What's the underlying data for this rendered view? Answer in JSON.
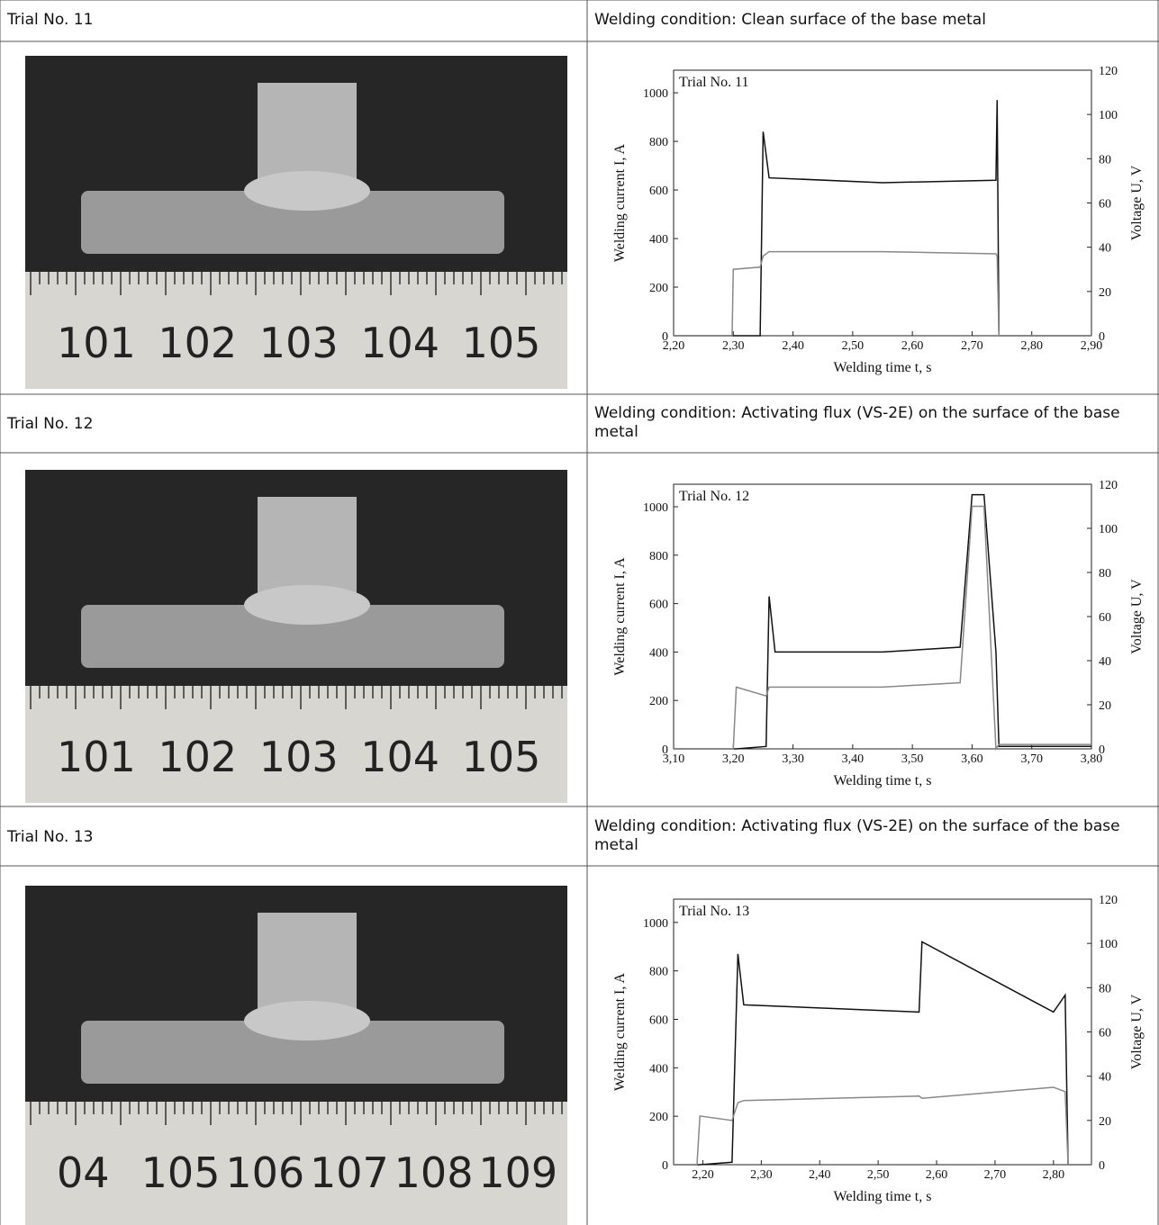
{
  "table": {
    "rows": [
      {
        "trial": "Trial No. 11",
        "condition": "Welding condition: Clean surface of the base metal"
      },
      {
        "trial": "Trial No. 12",
        "condition": "Welding condition: Activating flux (VS-2E) on the surface of the base metal"
      },
      {
        "trial": "Trial No. 13",
        "condition": "Welding condition: Activating flux (VS-2E) on the surface of the base metal"
      }
    ]
  },
  "photos": [
    {
      "ruler_labels": [
        "101",
        "102",
        "103",
        "104",
        "105"
      ]
    },
    {
      "ruler_labels": [
        "101",
        "102",
        "103",
        "104",
        "105"
      ]
    },
    {
      "ruler_labels": [
        "04",
        "105",
        "106",
        "107",
        "108",
        "109"
      ]
    }
  ],
  "chart_data": [
    {
      "type": "line",
      "title": "Trial No. 11",
      "xlabel": "Welding  time t, s",
      "ylabel": "Welding current I, A",
      "y2label": "Voltage U, V",
      "xlim": [
        2.2,
        2.9
      ],
      "xticks": [
        {
          "value": 2.2,
          "label": "2,20"
        },
        {
          "value": 2.3,
          "label": "2,30"
        },
        {
          "value": 2.4,
          "label": "2,40"
        },
        {
          "value": 2.5,
          "label": "2,50"
        },
        {
          "value": 2.6,
          "label": "2,60"
        },
        {
          "value": 2.7,
          "label": "2,70"
        },
        {
          "value": 2.8,
          "label": "2,80"
        },
        {
          "value": 2.9,
          "label": "2,90"
        }
      ],
      "ylim": [
        0,
        1093
      ],
      "yticks": [
        0,
        200,
        400,
        600,
        800,
        1000
      ],
      "y2lim": [
        0,
        120
      ],
      "y2ticks": [
        0,
        20,
        40,
        60,
        80,
        100,
        120
      ],
      "x": [
        2.2,
        2.298,
        2.3,
        2.345,
        2.35,
        2.36,
        2.55,
        2.74,
        2.742,
        2.745,
        2.9
      ],
      "series": [
        {
          "color": "#111111",
          "values": [
            0,
            0,
            0,
            0,
            840,
            650,
            630,
            640,
            970,
            0,
            0
          ]
        },
        {
          "color": "#888888",
          "axis": "y2",
          "values": [
            0,
            0,
            30,
            31,
            36,
            38,
            38,
            37,
            36,
            0,
            0
          ]
        }
      ]
    },
    {
      "type": "line",
      "title": "Trial No. 12",
      "xlabel": "Welding  time t, s",
      "ylabel": "Welding current I, A",
      "y2label": "Voltage U, V",
      "xlim": [
        3.1,
        3.8
      ],
      "xticks": [
        {
          "value": 3.1,
          "label": "3,10"
        },
        {
          "value": 3.2,
          "label": "3,20"
        },
        {
          "value": 3.3,
          "label": "3,30"
        },
        {
          "value": 3.4,
          "label": "3,40"
        },
        {
          "value": 3.5,
          "label": "3,50"
        },
        {
          "value": 3.6,
          "label": "3,60"
        },
        {
          "value": 3.7,
          "label": "3,70"
        },
        {
          "value": 3.8,
          "label": "3,80"
        }
      ],
      "ylim": [
        0,
        1093
      ],
      "yticks": [
        0,
        200,
        400,
        600,
        800,
        1000
      ],
      "y2lim": [
        0,
        120
      ],
      "y2ticks": [
        0,
        20,
        40,
        60,
        80,
        100,
        120
      ],
      "x": [
        3.1,
        3.2,
        3.205,
        3.255,
        3.26,
        3.27,
        3.45,
        3.58,
        3.6,
        3.62,
        3.64,
        3.645,
        3.8
      ],
      "series": [
        {
          "color": "#111111",
          "values": [
            0,
            0,
            0,
            10,
            630,
            400,
            400,
            420,
            1050,
            1050,
            400,
            10,
            10
          ]
        },
        {
          "color": "#888888",
          "axis": "y2",
          "values": [
            0,
            0,
            28,
            24,
            28,
            28,
            28,
            30,
            110,
            110,
            0,
            2,
            2
          ]
        }
      ]
    },
    {
      "type": "line",
      "title": "Trial No. 13",
      "xlabel": "Welding  time t, s",
      "ylabel": "Welding current I, A",
      "y2label": "Voltage U, V",
      "xlim": [
        2.15,
        2.865
      ],
      "xticks": [
        {
          "value": 2.2,
          "label": "2,20"
        },
        {
          "value": 2.3,
          "label": "2,30"
        },
        {
          "value": 2.4,
          "label": "2,40"
        },
        {
          "value": 2.5,
          "label": "2,50"
        },
        {
          "value": 2.6,
          "label": "2,60"
        },
        {
          "value": 2.7,
          "label": "2,70"
        },
        {
          "value": 2.8,
          "label": "2,80"
        }
      ],
      "ylim": [
        0,
        1096
      ],
      "yticks": [
        0,
        200,
        400,
        600,
        800,
        1000
      ],
      "y2lim": [
        0,
        120
      ],
      "y2ticks": [
        0,
        20,
        40,
        60,
        80,
        100,
        120
      ],
      "x": [
        2.15,
        2.19,
        2.195,
        2.25,
        2.26,
        2.27,
        2.57,
        2.575,
        2.8,
        2.82,
        2.825,
        2.865
      ],
      "series": [
        {
          "color": "#111111",
          "values": [
            0,
            0,
            0,
            10,
            870,
            660,
            630,
            920,
            630,
            700,
            0,
            0
          ]
        },
        {
          "color": "#888888",
          "axis": "y2",
          "values": [
            0,
            0,
            22,
            20,
            28,
            29,
            31,
            30,
            35,
            33,
            0,
            0
          ]
        }
      ]
    }
  ]
}
